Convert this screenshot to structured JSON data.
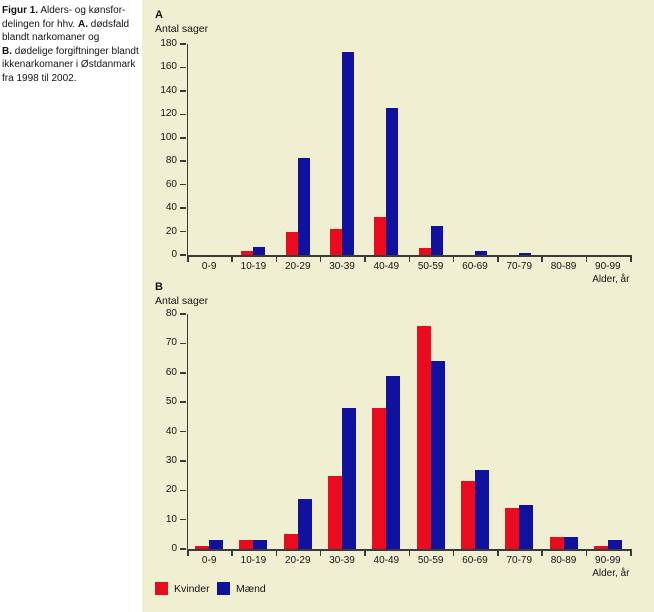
{
  "caption": {
    "seg_figur": "Figur 1.",
    "seg_l1": " Alders- og kønsfor-",
    "seg_l2a": "delingen for hhv. ",
    "seg_a": "A.",
    "seg_l2b": " dødsfald",
    "seg_l3": "blandt narkomaner og",
    "seg_b": "B.",
    "seg_l4": " dødelige forgiftninger blandt",
    "seg_l5": "ikkenarkomaner i Østdanmark",
    "seg_l6": "fra 1998 til 2002."
  },
  "colors": {
    "panel_bg": "#f1efd1",
    "kvinder": "#ea0c1e",
    "maend": "#1111a0",
    "axis": "#3a3a3a"
  },
  "chart_data": [
    {
      "id": "A",
      "type": "bar",
      "title": "A",
      "ylabel": "Antal sager",
      "xlabel": "Alder, år",
      "categories": [
        "0-9",
        "10-19",
        "20-29",
        "30-39",
        "40-49",
        "50-59",
        "60-69",
        "70-79",
        "80-89",
        "90-99"
      ],
      "series": [
        {
          "name": "Kvinder",
          "color": "#ea0c1e",
          "values": [
            0,
            3,
            20,
            22,
            32,
            6,
            0,
            0,
            0,
            0
          ]
        },
        {
          "name": "Mænd",
          "color": "#1111a0",
          "values": [
            0,
            7,
            83,
            173,
            125,
            25,
            3,
            2,
            0,
            0
          ]
        }
      ],
      "ylim": [
        0,
        180
      ],
      "ytick_step": 20,
      "grid": false,
      "legend_position": "bottom"
    },
    {
      "id": "B",
      "type": "bar",
      "title": "B",
      "ylabel": "Antal sager",
      "xlabel": "Alder, år",
      "categories": [
        "0-9",
        "10-19",
        "20-29",
        "30-39",
        "40-49",
        "50-59",
        "60-69",
        "70-79",
        "80-89",
        "90-99"
      ],
      "series": [
        {
          "name": "Kvinder",
          "color": "#ea0c1e",
          "values": [
            1,
            3,
            5,
            25,
            48,
            76,
            23,
            14,
            4,
            1
          ]
        },
        {
          "name": "Mænd",
          "color": "#1111a0",
          "values": [
            3,
            3,
            17,
            48,
            59,
            64,
            27,
            15,
            4,
            3
          ]
        }
      ],
      "ylim": [
        0,
        80
      ],
      "ytick_step": 10,
      "grid": false,
      "legend_position": "bottom"
    }
  ],
  "legend": {
    "items": [
      {
        "label": "Kvinder",
        "color": "#ea0c1e"
      },
      {
        "label": "Mænd",
        "color": "#1111a0"
      }
    ]
  }
}
